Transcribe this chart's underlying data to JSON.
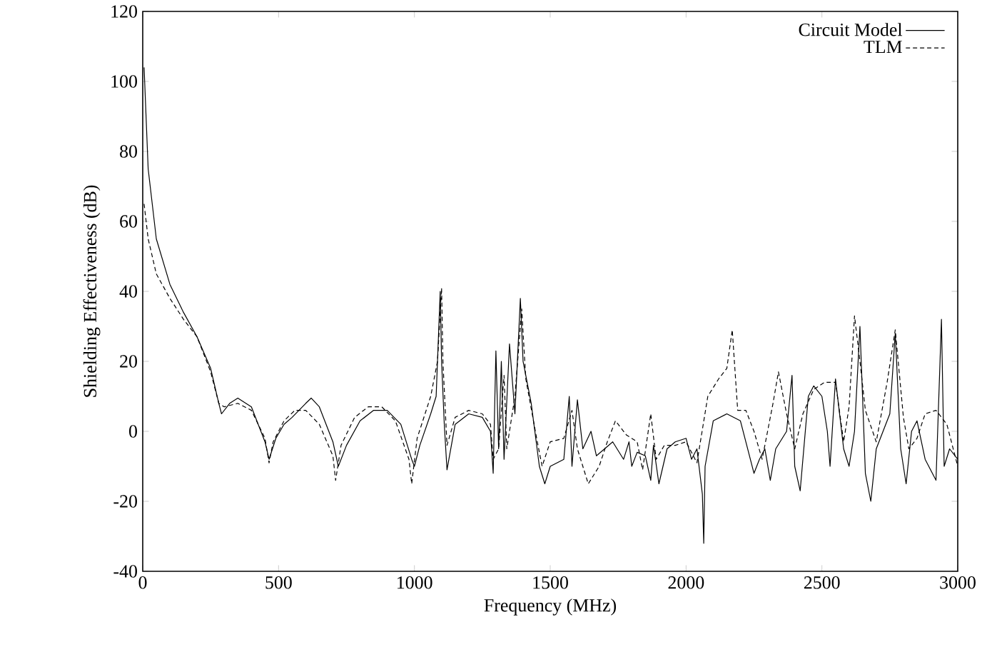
{
  "chart_data": {
    "type": "line",
    "xlabel": "Frequency (MHz)",
    "ylabel": "Shielding Effectiveness (dB)",
    "xlim": [
      0,
      3000
    ],
    "ylim": [
      -40,
      120
    ],
    "xticks": [
      0,
      500,
      1000,
      1500,
      2000,
      2500,
      3000
    ],
    "yticks": [
      -40,
      -20,
      0,
      20,
      40,
      60,
      80,
      100,
      120
    ],
    "grid": false,
    "legend": "top right",
    "marker": "none",
    "series": [
      {
        "name": "Circuit Model",
        "color": "#000000",
        "line_style": "solid",
        "x": [
          5,
          20,
          50,
          100,
          150,
          200,
          250,
          280,
          290,
          320,
          350,
          400,
          450,
          465,
          490,
          520,
          550,
          600,
          620,
          650,
          700,
          720,
          750,
          800,
          850,
          900,
          950,
          990,
          1000,
          1020,
          1060,
          1080,
          1095,
          1100,
          1110,
          1120,
          1150,
          1200,
          1250,
          1280,
          1290,
          1300,
          1310,
          1320,
          1330,
          1350,
          1370,
          1390,
          1400,
          1430,
          1460,
          1480,
          1500,
          1550,
          1570,
          1580,
          1600,
          1620,
          1650,
          1670,
          1700,
          1730,
          1770,
          1790,
          1800,
          1820,
          1850,
          1870,
          1880,
          1900,
          1930,
          1960,
          2000,
          2020,
          2040,
          2060,
          2065,
          2070,
          2100,
          2150,
          2200,
          2230,
          2250,
          2270,
          2290,
          2310,
          2330,
          2370,
          2390,
          2400,
          2420,
          2450,
          2470,
          2500,
          2520,
          2530,
          2550,
          2580,
          2600,
          2620,
          2640,
          2660,
          2680,
          2700,
          2750,
          2770,
          2790,
          2810,
          2830,
          2850,
          2880,
          2920,
          2940,
          2950,
          2970,
          3000
        ],
        "values": [
          104,
          75,
          55,
          42,
          34,
          27,
          18,
          8,
          5,
          8,
          9.5,
          7,
          -3,
          -8,
          -2,
          2,
          4,
          8,
          9.5,
          7,
          -3,
          -10,
          -4,
          3,
          6,
          6,
          2,
          -8,
          -10,
          -4,
          5,
          10,
          40,
          20,
          2,
          -11,
          2,
          5,
          4,
          0,
          -12,
          23,
          -5,
          20,
          -8,
          25,
          5,
          38,
          20,
          8,
          -10,
          -15,
          -10,
          -8,
          10,
          -10,
          9,
          -5,
          0,
          -7,
          -5,
          -3,
          -8,
          -3,
          -10,
          -6,
          -7,
          -14,
          -4,
          -15,
          -5,
          -3,
          -2,
          -8,
          -5,
          -18,
          -32,
          -10,
          3,
          5,
          3,
          -6,
          -12,
          -8,
          -5,
          -14,
          -5,
          0,
          16,
          -10,
          -17,
          10,
          13,
          10,
          0,
          -10,
          15,
          -5,
          -10,
          0,
          30,
          -12,
          -20,
          -5,
          5,
          28,
          -5,
          -15,
          0,
          3,
          -8,
          -14,
          32,
          -10,
          -5,
          -8
        ]
      },
      {
        "name": "TLM",
        "color": "#000000",
        "line_style": "dashed",
        "x": [
          5,
          20,
          50,
          100,
          150,
          200,
          250,
          280,
          300,
          350,
          400,
          450,
          465,
          480,
          520,
          560,
          600,
          650,
          700,
          710,
          730,
          780,
          830,
          880,
          930,
          980,
          990,
          1010,
          1060,
          1085,
          1100,
          1105,
          1120,
          1150,
          1200,
          1250,
          1280,
          1290,
          1310,
          1330,
          1340,
          1370,
          1395,
          1410,
          1450,
          1470,
          1500,
          1550,
          1580,
          1600,
          1640,
          1680,
          1710,
          1740,
          1780,
          1820,
          1840,
          1870,
          1890,
          1920,
          1960,
          2000,
          2040,
          2080,
          2120,
          2150,
          2170,
          2190,
          2220,
          2250,
          2280,
          2320,
          2340,
          2370,
          2400,
          2430,
          2470,
          2510,
          2550,
          2580,
          2600,
          2620,
          2640,
          2660,
          2700,
          2740,
          2770,
          2800,
          2820,
          2850,
          2880,
          2920,
          2960,
          3000
        ],
        "values": [
          65,
          55,
          45,
          38,
          32,
          27,
          17,
          8,
          7,
          8,
          6,
          -2,
          -9,
          -3,
          3,
          6,
          6,
          2,
          -7,
          -14,
          -4,
          4,
          7,
          7,
          3,
          -8,
          -15,
          -2,
          10,
          20,
          41,
          20,
          -4,
          4,
          6,
          5,
          2,
          -8,
          -5,
          16,
          -5,
          10,
          35,
          15,
          -2,
          -10,
          -3,
          -2,
          6,
          -5,
          -15,
          -10,
          -3,
          3,
          -1,
          -3,
          -11,
          5,
          -8,
          -4,
          -4,
          -3,
          -9,
          10,
          15,
          18,
          29,
          6,
          6,
          0,
          -8,
          8,
          17,
          5,
          -5,
          5,
          12,
          14,
          14,
          -3,
          7,
          33,
          20,
          6,
          -3,
          14,
          29,
          4,
          -5,
          -2,
          5,
          6,
          2,
          -10
        ]
      }
    ]
  }
}
